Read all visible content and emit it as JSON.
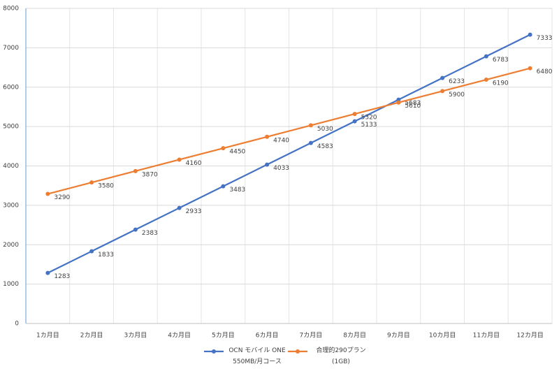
{
  "chart_data": {
    "type": "line",
    "categories": [
      "1カ月目",
      "2カ月目",
      "3カ月目",
      "4カ月目",
      "5カ月目",
      "6カ月目",
      "7カ月目",
      "8カ月目",
      "9カ月目",
      "10カ月目",
      "11カ月目",
      "12カ月目"
    ],
    "series": [
      {
        "name": "OCN モバイル ONE\n550MB/月コース",
        "color": "#4472c4",
        "values": [
          1283,
          1833,
          2383,
          2933,
          3483,
          4033,
          4583,
          5133,
          5683,
          6233,
          6783,
          7333
        ]
      },
      {
        "name": "合理的290プラン\n(1GB)",
        "color": "#ed7d31",
        "values": [
          3290,
          3580,
          3870,
          4160,
          4450,
          4740,
          5030,
          5320,
          5610,
          5900,
          6190,
          6480
        ]
      }
    ],
    "ylim": [
      0,
      8000
    ],
    "yticks": [
      0,
      1000,
      2000,
      3000,
      4000,
      5000,
      6000,
      7000,
      8000
    ],
    "grid": true,
    "legend": "bottom"
  }
}
